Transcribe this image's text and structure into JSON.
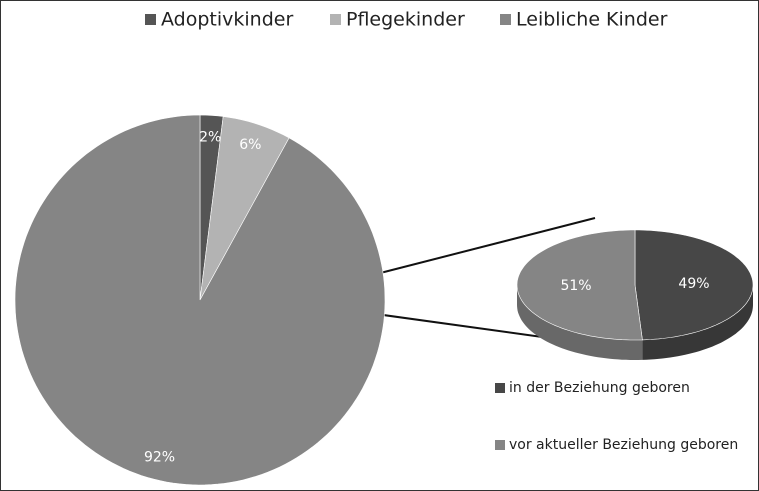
{
  "chart_data": [
    {
      "type": "pie",
      "categories": [
        "Adoptivkinder",
        "Pflegekinder",
        "Leibliche Kinder"
      ],
      "values": [
        2,
        6,
        92
      ],
      "value_labels": [
        "2%",
        "6%",
        "92%"
      ],
      "colors": [
        "#555555",
        "#b3b3b3",
        "#858585"
      ],
      "legend": "top"
    },
    {
      "type": "pie3d",
      "categories": [
        "in der Beziehung geboren",
        "vor aktueller Beziehung geboren"
      ],
      "values": [
        49,
        51
      ],
      "value_labels": [
        "49%",
        "51%"
      ],
      "colors": [
        "#474747",
        "#858585"
      ],
      "legend": "bottom"
    }
  ]
}
